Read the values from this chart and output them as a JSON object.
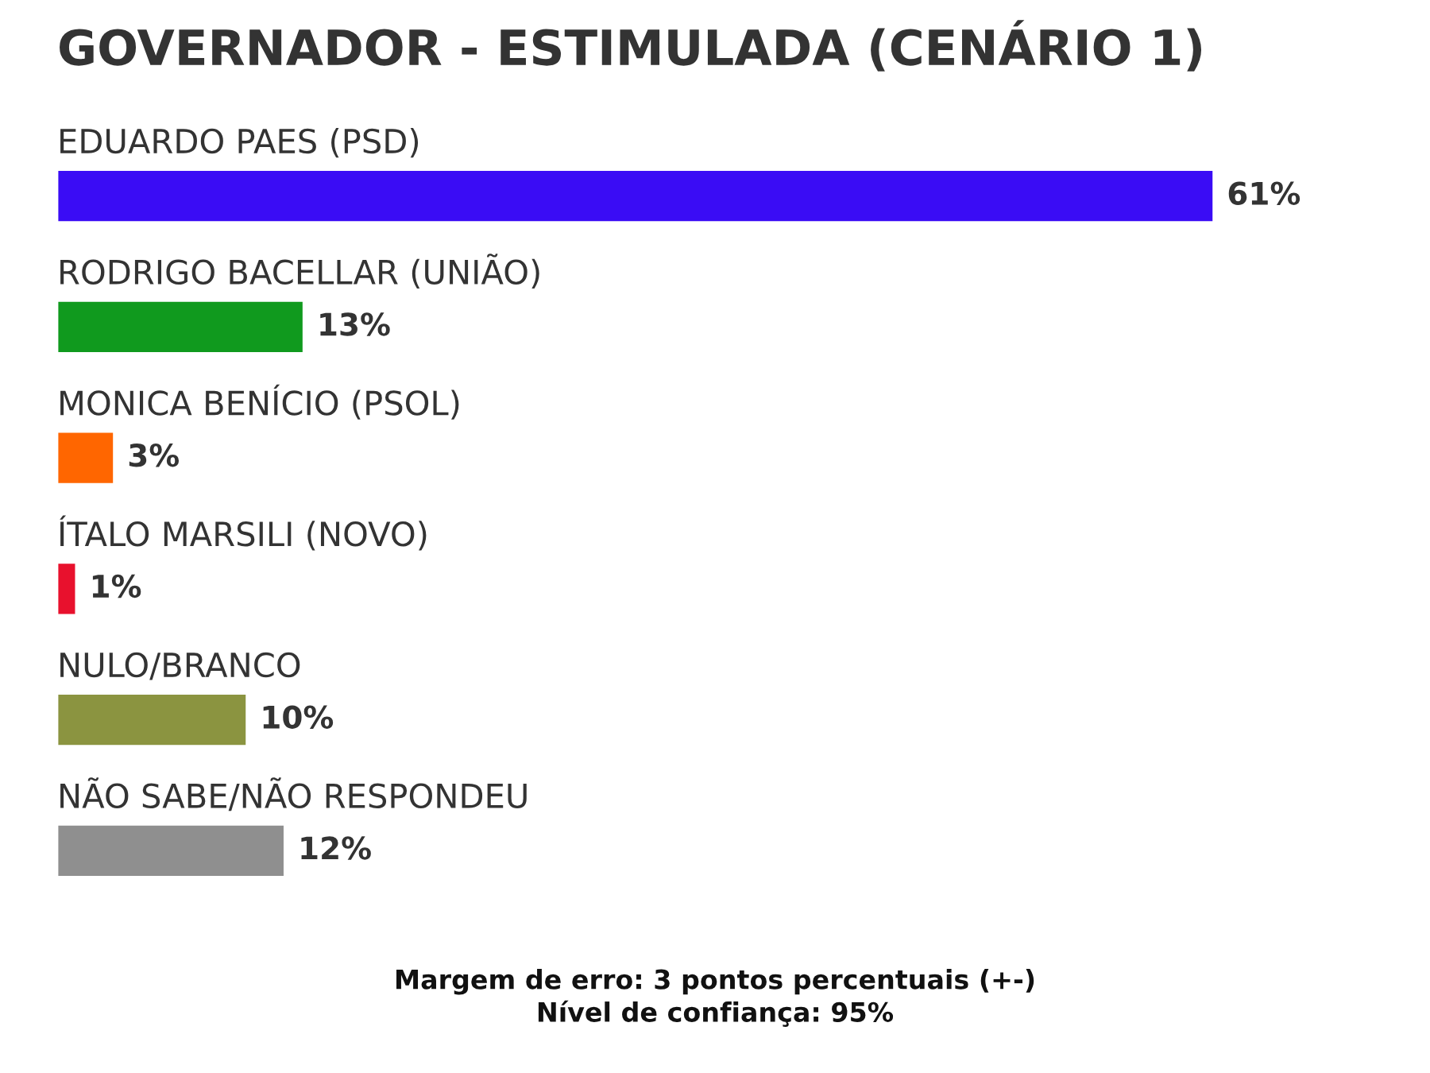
{
  "chart_data": {
    "type": "bar",
    "orientation": "horizontal",
    "title": "GOVERNADOR - ESTIMULADA (CENÁRIO 1)",
    "categories": [
      "EDUARDO PAES (PSD)",
      "RODRIGO BACELLAR (UNIÃO)",
      "MONICA BENÍCIO (PSOL)",
      "ÍTALO MARSILI (NOVO)",
      "NULO/BRANCO",
      "NÃO SABE/NÃO RESPONDEU"
    ],
    "values": [
      61,
      13,
      3,
      1,
      10,
      12
    ],
    "value_labels": [
      "61%",
      "13%",
      "3%",
      "1%",
      "10%",
      "12%"
    ],
    "colors": [
      "#3a0cf5",
      "#109a1e",
      "#ff6600",
      "#e8112d",
      "#8b9440",
      "#8f8f8f"
    ],
    "annotations": [
      "Margem de erro: 3 pontos percentuais (+-)",
      "Nível de confiança: 95%"
    ]
  }
}
